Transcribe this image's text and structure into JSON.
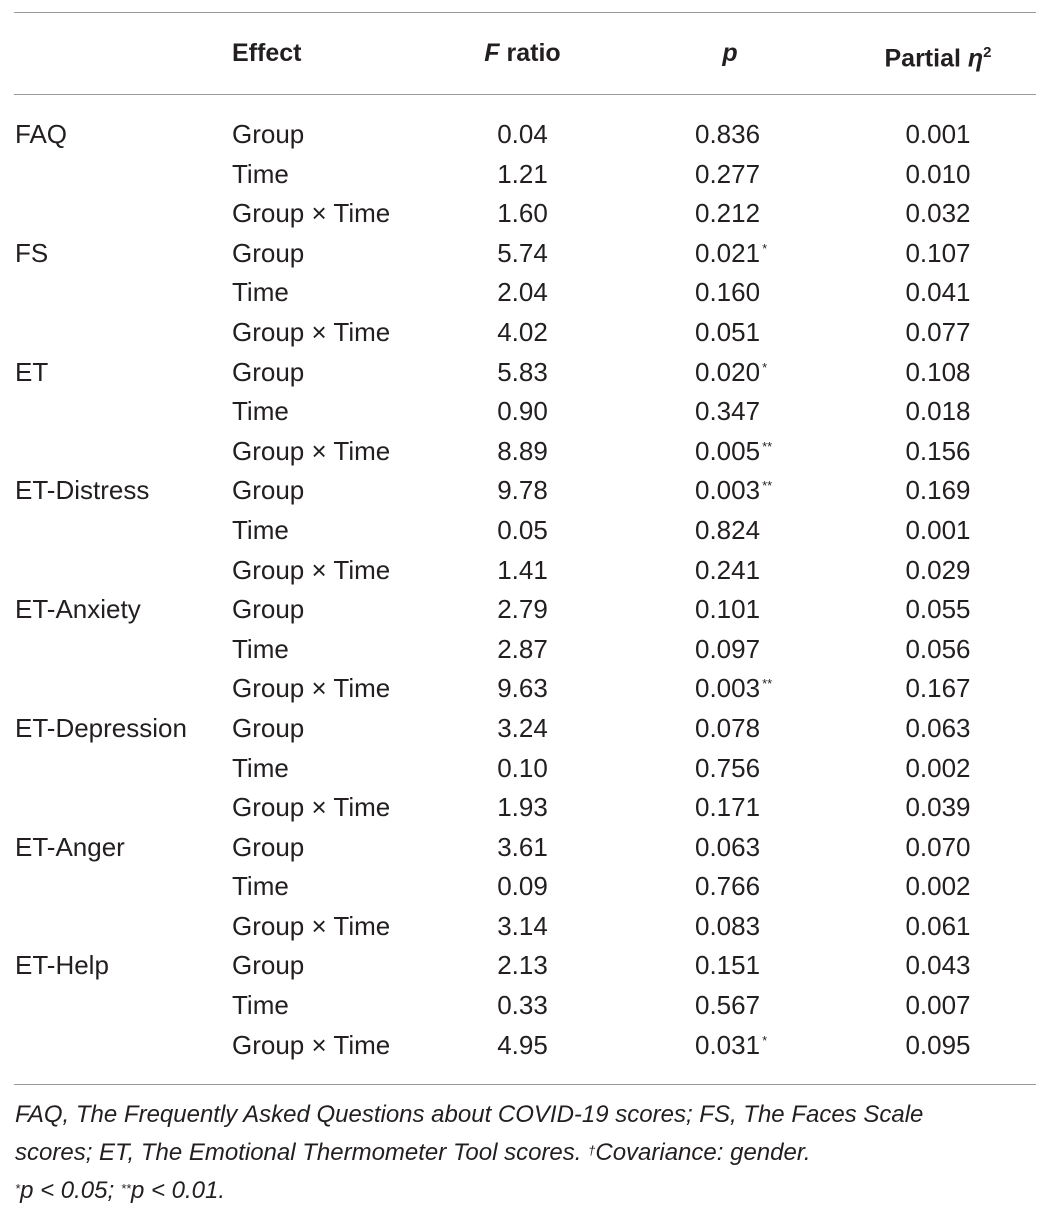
{
  "table": {
    "headers": {
      "measure": "",
      "effect": "Effect",
      "f_ratio_prefix": "F",
      "f_ratio_suffix": " ratio",
      "p": "p",
      "eta_prefix": "Partial ",
      "eta_symbol": "η",
      "eta_sup": "2"
    },
    "rows": [
      {
        "measure": "FAQ",
        "effect": "Group",
        "f": "0.04",
        "p": "0.836",
        "sig": "",
        "eta": "0.001"
      },
      {
        "measure": "",
        "effect": "Time",
        "f": "1.21",
        "p": "0.277",
        "sig": "",
        "eta": "0.010"
      },
      {
        "measure": "",
        "effect": "Group × Time",
        "f": "1.60",
        "p": "0.212",
        "sig": "",
        "eta": "0.032"
      },
      {
        "measure": "FS",
        "effect": "Group",
        "f": "5.74",
        "p": "0.021",
        "sig": "*",
        "eta": "0.107"
      },
      {
        "measure": "",
        "effect": "Time",
        "f": "2.04",
        "p": "0.160",
        "sig": "",
        "eta": "0.041"
      },
      {
        "measure": "",
        "effect": "Group × Time",
        "f": "4.02",
        "p": "0.051",
        "sig": "",
        "eta": "0.077"
      },
      {
        "measure": "ET",
        "effect": "Group",
        "f": "5.83",
        "p": "0.020",
        "sig": "*",
        "eta": "0.108"
      },
      {
        "measure": "",
        "effect": "Time",
        "f": "0.90",
        "p": "0.347",
        "sig": "",
        "eta": "0.018"
      },
      {
        "measure": "",
        "effect": "Group × Time",
        "f": "8.89",
        "p": "0.005",
        "sig": "**",
        "eta": "0.156"
      },
      {
        "measure": "ET-Distress",
        "effect": "Group",
        "f": "9.78",
        "p": "0.003",
        "sig": "**",
        "eta": "0.169"
      },
      {
        "measure": "",
        "effect": "Time",
        "f": "0.05",
        "p": "0.824",
        "sig": "",
        "eta": "0.001"
      },
      {
        "measure": "",
        "effect": "Group × Time",
        "f": "1.41",
        "p": "0.241",
        "sig": "",
        "eta": "0.029"
      },
      {
        "measure": "ET-Anxiety",
        "effect": "Group",
        "f": "2.79",
        "p": "0.101",
        "sig": "",
        "eta": "0.055"
      },
      {
        "measure": "",
        "effect": "Time",
        "f": "2.87",
        "p": "0.097",
        "sig": "",
        "eta": "0.056"
      },
      {
        "measure": "",
        "effect": "Group × Time",
        "f": "9.63",
        "p": "0.003",
        "sig": "**",
        "eta": "0.167"
      },
      {
        "measure": "ET-Depression",
        "effect": "Group",
        "f": "3.24",
        "p": "0.078",
        "sig": "",
        "eta": "0.063"
      },
      {
        "measure": "",
        "effect": "Time",
        "f": "0.10",
        "p": "0.756",
        "sig": "",
        "eta": "0.002"
      },
      {
        "measure": "",
        "effect": "Group × Time",
        "f": "1.93",
        "p": "0.171",
        "sig": "",
        "eta": "0.039"
      },
      {
        "measure": "ET-Anger",
        "effect": "Group",
        "f": "3.61",
        "p": "0.063",
        "sig": "",
        "eta": "0.070"
      },
      {
        "measure": "",
        "effect": "Time",
        "f": "0.09",
        "p": "0.766",
        "sig": "",
        "eta": "0.002"
      },
      {
        "measure": "",
        "effect": "Group × Time",
        "f": "3.14",
        "p": "0.083",
        "sig": "",
        "eta": "0.061"
      },
      {
        "measure": "ET-Help",
        "effect": "Group",
        "f": "2.13",
        "p": "0.151",
        "sig": "",
        "eta": "0.043"
      },
      {
        "measure": "",
        "effect": "Time",
        "f": "0.33",
        "p": "0.567",
        "sig": "",
        "eta": "0.007"
      },
      {
        "measure": "",
        "effect": "Group × Time",
        "f": "4.95",
        "p": "0.031",
        "sig": "*",
        "eta": "0.095"
      }
    ]
  },
  "footnote": {
    "line1": "FAQ, The Frequently Asked Questions about COVID-19 scores; FS, The Faces Scale",
    "line2_text": "scores; ET, The Emotional Thermometer Tool scores. ",
    "line2_dagger": "†",
    "line2_cov": "Covariance: gender.",
    "line3_sup1": "*",
    "line3_a": "p < 0.05; ",
    "line3_sup2": "**",
    "line3_b": "p < 0.01."
  }
}
